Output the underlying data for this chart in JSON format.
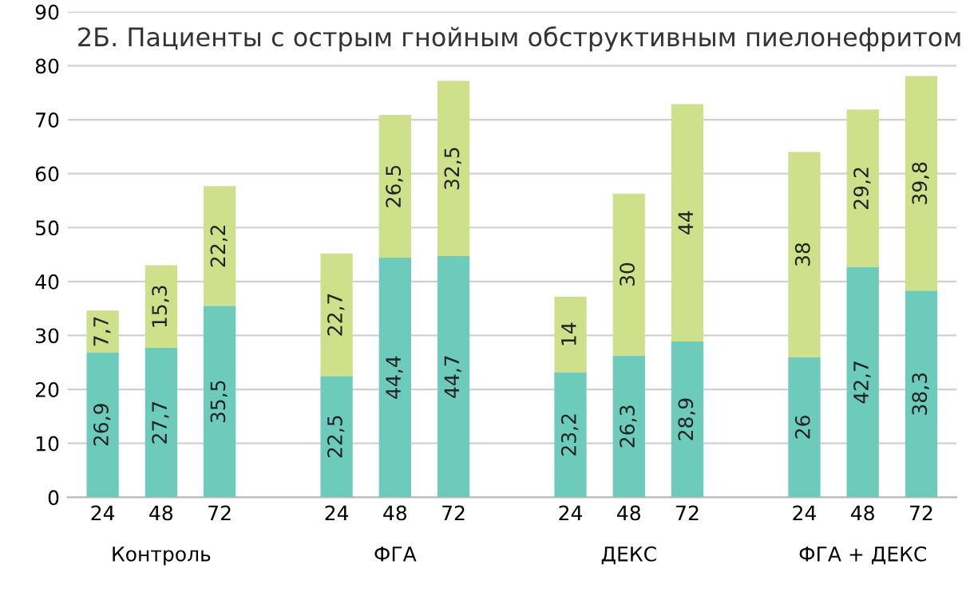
{
  "chart_data": {
    "type": "bar",
    "stacked": true,
    "title": "2Б. Пациенты с острым гнойным обструктивным пиелонефритом",
    "categories": [
      "24",
      "48",
      "72",
      null,
      "24",
      "48",
      "72",
      null,
      "24",
      "48",
      "72",
      null,
      "24",
      "48",
      "72"
    ],
    "series": [
      {
        "color": "#6dcbbb",
        "values": [
          26.9,
          27.7,
          35.5,
          null,
          22.5,
          44.4,
          44.7,
          null,
          23.2,
          26.3,
          28.9,
          null,
          26,
          42.7,
          38.3
        ],
        "value_labels": [
          "26,9",
          "27,7",
          "35,5",
          null,
          "22,5",
          "44,4",
          "44,7",
          null,
          "23,2",
          "26,3",
          "28,9",
          null,
          "26",
          "42,7",
          "38,3"
        ]
      },
      {
        "color": "#cfe08a",
        "values": [
          7.7,
          15.3,
          22.2,
          null,
          22.7,
          26.5,
          32.5,
          null,
          14,
          30,
          44,
          null,
          38,
          29.2,
          39.8
        ],
        "value_labels": [
          "7,7",
          "15,3",
          "22,2",
          null,
          "22,7",
          "26,5",
          "32,5",
          null,
          "14",
          "30",
          "44",
          null,
          "38",
          "29,2",
          "39,8"
        ]
      }
    ],
    "annotations": [
      "Контроль",
      "ФГА",
      "ДЕКС",
      "ФГА + ДЕКС"
    ],
    "ylim": [
      0,
      90
    ],
    "yticks": [
      0,
      10,
      20,
      30,
      40,
      50,
      60,
      70,
      80,
      90
    ],
    "grid": "y"
  }
}
